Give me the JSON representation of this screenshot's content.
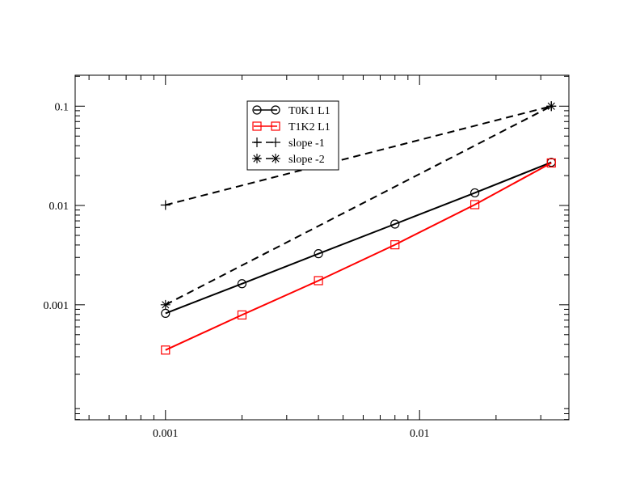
{
  "chart_data": {
    "type": "line",
    "title": "",
    "xlabel": "",
    "ylabel": "",
    "xscale": "log",
    "yscale": "log",
    "xlim": [
      0.000441,
      0.0387
    ],
    "ylim": [
      6.95e-05,
      0.205
    ],
    "x_ticks": [
      {
        "value": 0.001,
        "label": "0.001"
      },
      {
        "value": 0.01,
        "label": "0.01"
      }
    ],
    "y_ticks": [
      {
        "value": 0.001,
        "label": "0.001"
      },
      {
        "value": 0.01,
        "label": "0.01"
      },
      {
        "value": 0.1,
        "label": "0.1"
      }
    ],
    "grid": false,
    "legend_position": "top-center",
    "series": [
      {
        "name": "T0K1 L1",
        "color": "#000000",
        "marker": "circle",
        "line_style": "solid",
        "x": [
          0.001,
          0.002,
          0.004,
          0.008,
          0.0165,
          0.033
        ],
        "y": [
          0.00082,
          0.00163,
          0.00327,
          0.0065,
          0.0134,
          0.0272
        ]
      },
      {
        "name": "T1K2 L1",
        "color": "#ff0000",
        "marker": "square",
        "line_style": "solid",
        "x": [
          0.001,
          0.002,
          0.004,
          0.008,
          0.0165,
          0.033
        ],
        "y": [
          0.00035,
          0.00079,
          0.00175,
          0.00402,
          0.0102,
          0.0268
        ]
      },
      {
        "name": "slope  -1",
        "color": "#000000",
        "marker": "plus",
        "line_style": "dashed",
        "x": [
          0.001,
          0.033
        ],
        "y": [
          0.0101,
          0.1
        ]
      },
      {
        "name": "slope -2",
        "color": "#000000",
        "marker": "star",
        "line_style": "dashed",
        "x": [
          0.001,
          0.033
        ],
        "y": [
          0.001,
          0.1
        ]
      }
    ]
  }
}
